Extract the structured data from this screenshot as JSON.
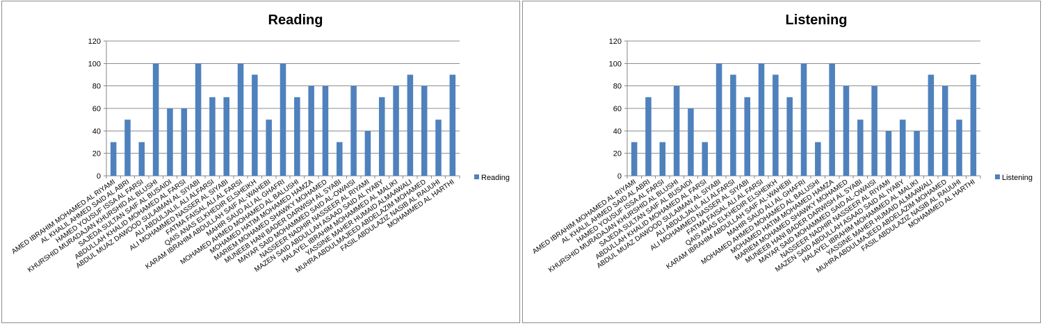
{
  "chart_data": [
    {
      "type": "bar",
      "title": "Reading",
      "xlabel": "",
      "ylabel": "",
      "ylim": [
        0,
        120
      ],
      "yticks": [
        0,
        20,
        40,
        60,
        80,
        100,
        120
      ],
      "grid": true,
      "legend_position": "right",
      "color": "#4f81bd",
      "categories": [
        "AMED IBRAHIM MOHAMED AL RIYAMI",
        "AL KHALIL AHMED SAID AL ABRI",
        "HAMED YOUSUF ISSA AL FARSI",
        "KHURSHID MURADAJAN KHURSHID AL BLUSHI",
        "SAJEDA SULTAN SAIF AL BUSAIDI",
        "ABDULLAH KHALID MOHAMED AL FARSI",
        "ABDUL MUAZ DAWOOD SULAIMAN AL SIYABI",
        "ALI ABDULJALIL ALI ALFARSI",
        "ALI MOHAMMED NASSER AL SIYABI",
        "FATMA FAISAL ALI AL FARSI",
        "QAIS ANAS ELKHEDIR ELSHEIKH",
        "KARAM IBRAHIM ABDULLAH SAIF AL-WAHEBI",
        "MAHIR SAUD ALI AL GHAFRI",
        "MOHAMED AHMED MOHAMED AL BALUSHI",
        "MOHAMED HATIM MOHAMED HAMZA",
        "MARIEM MOHAMED SHAWKY MOHAMED",
        "MUNEEB HANI BADER DARWISH AL SYABI",
        "MAYAR SAID MOHAMMED SAID AL-OWAISI",
        "NASSEER NADHIR NASSEER AL RIYAMI",
        "MAZEN SAID ABDULLAH ASAAD SAID AL IYABY",
        "HALAYEL IBRAHIM MOHAMMED AL MALIKI",
        "YASSINE MAHER HUMAID ALMAAWALI",
        "MUHRA ABDULMAJEED ABDELAZIM MOHAMED",
        "FASIL ABDULAZIZ NASIB AL RAUUHI",
        "MOHAMMED AL HARTHI"
      ],
      "series": [
        {
          "name": "Reading",
          "values": [
            30,
            50,
            30,
            100,
            60,
            60,
            100,
            70,
            70,
            100,
            90,
            50,
            100,
            70,
            80,
            80,
            30,
            80,
            40,
            70,
            80,
            90,
            80,
            50,
            90
          ]
        }
      ]
    },
    {
      "type": "bar",
      "title": "Listening",
      "xlabel": "",
      "ylabel": "",
      "ylim": [
        0,
        120
      ],
      "yticks": [
        0,
        20,
        40,
        60,
        80,
        100,
        120
      ],
      "grid": true,
      "legend_position": "right",
      "color": "#4f81bd",
      "categories": [
        "AMED IBRAHIM MOHAMED AL RIYAMI",
        "AL KHALIL AHMED SAID AL ABRI",
        "HAMED YOUSUF ISSA AL FARSI",
        "KHURSHID MURADAJAN KHURSHID AL BLUSHI",
        "SAJEDA SULTAN SAIF AL BUSAIDI",
        "ABDULLAH KHALID MOHAMED AL FARSI",
        "ABDUL MUAZ DAWOOD SULAIMAN AL SIYABI",
        "ALI ABDULJALIL ALI ALFARSI",
        "ALI MOHAMMED NASSER AL SIYABI",
        "FATMA FAISAL ALI AL FARSI",
        "QAIS ANAS ELKHEDIR ELSHEIKH",
        "KARAM IBRAHIM ABDULLAH SAIF AL-WAHEBI",
        "MAHIR SAUD ALI AL GHAFRI",
        "MOHAMED AHMED MOHAMED AL BALUSHI",
        "MOHAMED HATIM MOHAMED HAMZA",
        "MARIEM MOHAMED SHAWKY MOHAMED",
        "MUNEEB HANI BADER DARWISH AL SYABI",
        "MAYAR SAID MOHAMMED SAID AL-OWAISI",
        "NASSEER NADHIR NASSEER AL RIYAMI",
        "MAZEN SAID ABDULLAH ASAAD SAID AL IYABY",
        "HALAYEL IBRAHIM MOHAMMED AL MALIKI",
        "YASSINE MAHER HUMAID ALMAAWALI",
        "MUHRA ABDULMAJEED ABDELAZIM MOHAMED",
        "FASIL ABDULAZIZ NASIB AL RAUUHI",
        "MOHAMMED AL HARTHI"
      ],
      "series": [
        {
          "name": "Listening",
          "values": [
            30,
            70,
            30,
            80,
            60,
            30,
            100,
            90,
            70,
            100,
            90,
            70,
            100,
            30,
            100,
            80,
            50,
            80,
            40,
            50,
            40,
            90,
            80,
            50,
            90
          ]
        }
      ]
    }
  ]
}
